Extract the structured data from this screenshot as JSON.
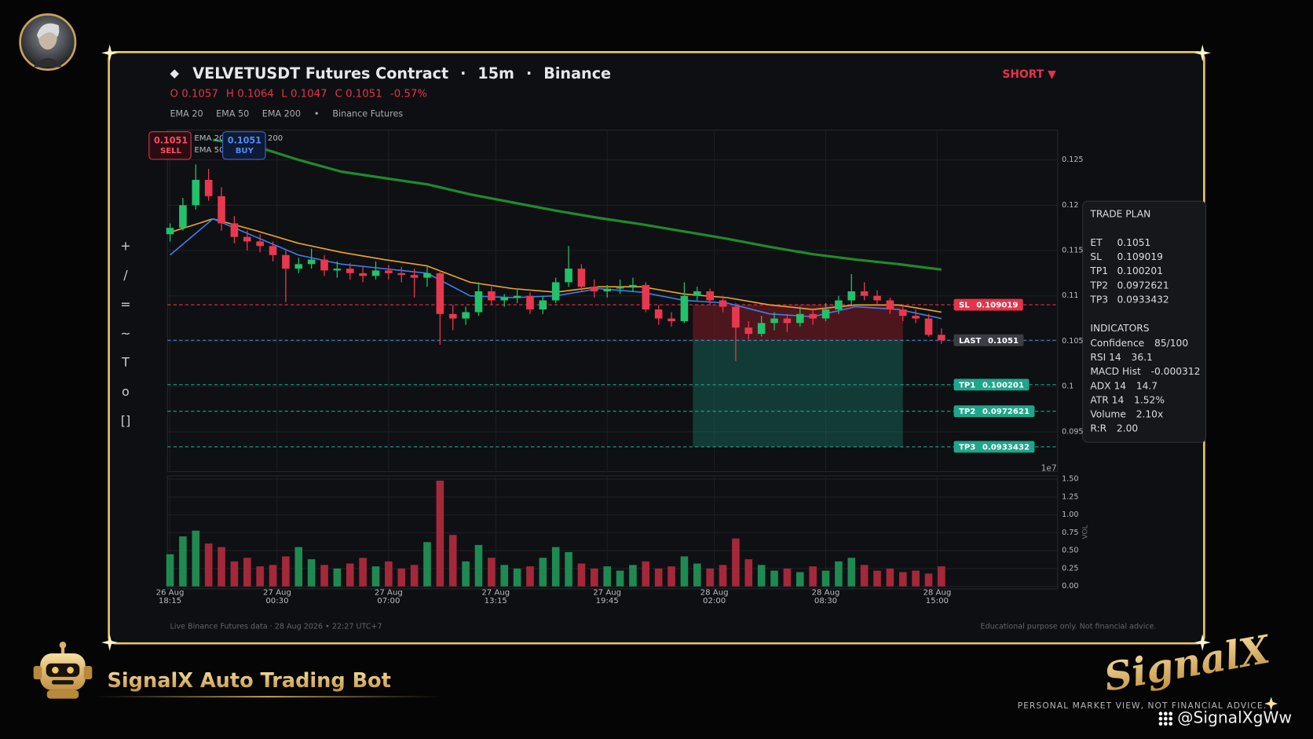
{
  "header": {
    "icon": "◆",
    "title": "VELVETUSDT Futures Contract",
    "separator": "·",
    "interval": "15m",
    "exchange": "Binance",
    "side": "SHORT ▼",
    "ohlc": [
      {
        "label": "O",
        "value": "0.1057"
      },
      {
        "label": "H",
        "value": "0.1064"
      },
      {
        "label": "L",
        "value": "0.1047"
      },
      {
        "label": "C",
        "value": "0.1051"
      }
    ],
    "change": "-0.57%",
    "legend_separator": "•",
    "source": "Binance Futures"
  },
  "order_buttons": [
    {
      "price": "0.1051",
      "label": "SELL"
    },
    {
      "price": "0.1051",
      "label": "BUY"
    }
  ],
  "toolbar": [
    "+",
    "/",
    "=",
    "~",
    "T",
    "o",
    "[]"
  ],
  "trade_plan": {
    "title": "TRADE PLAN",
    "rows": [
      [
        "ET",
        "0.1051"
      ],
      [
        "SL",
        "0.109019"
      ],
      [
        "TP1",
        "0.100201"
      ],
      [
        "TP2",
        "0.0972621"
      ],
      [
        "TP3",
        "0.0933432"
      ]
    ],
    "indicators_title": "INDICATORS",
    "indicators": [
      [
        "Confidence",
        "85/100"
      ],
      [
        "RSI 14",
        "36.1"
      ],
      [
        "MACD Hist",
        "-0.000312"
      ],
      [
        "ADX 14",
        "14.7"
      ],
      [
        "ATR 14",
        "1.52%"
      ],
      [
        "Volume",
        "2.10x"
      ],
      [
        "R:R",
        "2.00"
      ]
    ]
  },
  "footer": {
    "left": "Live Binance Futures data  ·  28 Aug 2026 • 22:27 UTC+7",
    "right": "Educational purpose only. Not financial advice."
  },
  "branding": {
    "bot": "SignalX Auto Trading Bot",
    "logo": "SignalX",
    "disclaimer": "PERSONAL MARKET VIEW, NOT FINANCIAL ADVICE.",
    "watermark": "@SignalXgWw"
  },
  "chart_data": [
    {
      "type": "candlestick",
      "x": [
        0,
        3,
        6,
        9,
        12,
        15,
        18,
        21,
        24,
        27,
        30,
        33,
        36,
        39,
        42,
        45,
        48,
        51,
        54,
        57,
        60,
        63,
        66,
        69,
        72,
        75,
        78,
        81,
        84,
        87,
        90,
        93,
        96,
        99,
        102,
        105,
        108,
        111,
        114,
        117,
        120,
        123,
        126,
        129,
        132,
        135,
        138,
        141,
        144,
        147,
        150,
        153,
        156,
        159,
        162,
        165,
        168,
        171,
        174,
        177,
        180
      ],
      "open": [
        0.1168,
        0.1175,
        0.12,
        0.1228,
        0.121,
        0.118,
        0.1165,
        0.116,
        0.1155,
        0.1145,
        0.113,
        0.1135,
        0.114,
        0.1128,
        0.113,
        0.1125,
        0.1122,
        0.1128,
        0.1125,
        0.1123,
        0.112,
        0.1125,
        0.108,
        0.1075,
        0.1082,
        0.1105,
        0.1095,
        0.1098,
        0.11,
        0.1085,
        0.1095,
        0.1115,
        0.113,
        0.111,
        0.1105,
        0.1108,
        0.111,
        0.1112,
        0.1085,
        0.1075,
        0.1072,
        0.11,
        0.1105,
        0.1095,
        0.1088,
        0.1065,
        0.1058,
        0.107,
        0.1075,
        0.107,
        0.108,
        0.1075,
        0.1085,
        0.1095,
        0.1105,
        0.11,
        0.1095,
        0.1085,
        0.1078,
        0.1075,
        0.1057
      ],
      "high": [
        0.118,
        0.1208,
        0.1245,
        0.124,
        0.122,
        0.1188,
        0.1172,
        0.1168,
        0.116,
        0.115,
        0.1142,
        0.1152,
        0.1145,
        0.1138,
        0.1136,
        0.1132,
        0.1138,
        0.1134,
        0.1132,
        0.113,
        0.1132,
        0.1128,
        0.109,
        0.1088,
        0.1115,
        0.111,
        0.1102,
        0.1108,
        0.1104,
        0.11,
        0.112,
        0.1155,
        0.1135,
        0.1118,
        0.1112,
        0.1118,
        0.112,
        0.1115,
        0.109,
        0.1082,
        0.1115,
        0.111,
        0.1108,
        0.11,
        0.1092,
        0.1072,
        0.1078,
        0.1082,
        0.108,
        0.1088,
        0.1085,
        0.1092,
        0.11,
        0.1124,
        0.1115,
        0.1106,
        0.1098,
        0.109,
        0.1085,
        0.108,
        0.1064
      ],
      "low": [
        0.116,
        0.1172,
        0.1195,
        0.1205,
        0.1172,
        0.1158,
        0.115,
        0.1148,
        0.1138,
        0.1093,
        0.1125,
        0.113,
        0.1122,
        0.112,
        0.1118,
        0.1115,
        0.1118,
        0.1118,
        0.1115,
        0.1098,
        0.111,
        0.1046,
        0.1062,
        0.1068,
        0.1078,
        0.109,
        0.1088,
        0.1092,
        0.108,
        0.108,
        0.1092,
        0.111,
        0.1105,
        0.1098,
        0.1098,
        0.1102,
        0.1105,
        0.1082,
        0.1068,
        0.1066,
        0.107,
        0.1095,
        0.109,
        0.1082,
        0.1028,
        0.1052,
        0.1055,
        0.1062,
        0.106,
        0.1066,
        0.1068,
        0.1072,
        0.108,
        0.109,
        0.1095,
        0.109,
        0.108,
        0.1072,
        0.107,
        0.1055,
        0.1047
      ],
      "close": [
        0.1175,
        0.12,
        0.1228,
        0.121,
        0.118,
        0.1165,
        0.116,
        0.1155,
        0.1145,
        0.113,
        0.1135,
        0.114,
        0.1128,
        0.113,
        0.1125,
        0.1122,
        0.1128,
        0.1125,
        0.1123,
        0.112,
        0.1125,
        0.108,
        0.1075,
        0.1082,
        0.1105,
        0.1095,
        0.1098,
        0.11,
        0.1085,
        0.1095,
        0.1115,
        0.113,
        0.111,
        0.1105,
        0.1108,
        0.111,
        0.1112,
        0.1085,
        0.1075,
        0.1072,
        0.11,
        0.1105,
        0.1095,
        0.1088,
        0.1065,
        0.1058,
        0.107,
        0.1075,
        0.107,
        0.108,
        0.1075,
        0.1085,
        0.1095,
        0.1105,
        0.11,
        0.1095,
        0.1085,
        0.1078,
        0.1075,
        0.1057,
        0.1051
      ],
      "up_color": "#22c16b",
      "down_color": "#e8384f",
      "series": [
        {
          "name": "EMA 20",
          "color": "#3b7ff0",
          "width": 1.5,
          "x": [
            0,
            10,
            20,
            30,
            40,
            50,
            60,
            70,
            80,
            90,
            100,
            110,
            120,
            130,
            140,
            150,
            160,
            170,
            180
          ],
          "values": [
            0.1145,
            0.1185,
            0.1165,
            0.1145,
            0.1135,
            0.113,
            0.1125,
            0.11,
            0.1098,
            0.11,
            0.1108,
            0.1104,
            0.1095,
            0.1092,
            0.108,
            0.1077,
            0.1088,
            0.1085,
            0.1075
          ]
        },
        {
          "name": "EMA 50",
          "color": "#f2a427",
          "width": 1.5,
          "x": [
            0,
            10,
            20,
            30,
            40,
            50,
            60,
            70,
            80,
            90,
            100,
            110,
            120,
            130,
            140,
            150,
            160,
            170,
            180
          ],
          "values": [
            0.117,
            0.1185,
            0.1172,
            0.1158,
            0.1148,
            0.114,
            0.1133,
            0.1115,
            0.1108,
            0.1104,
            0.111,
            0.111,
            0.1102,
            0.1098,
            0.109,
            0.1085,
            0.109,
            0.109,
            0.1082
          ]
        },
        {
          "name": "EMA 200",
          "color": "#1f8a2c",
          "width": 3,
          "x": [
            0,
            10,
            20,
            30,
            40,
            50,
            60,
            70,
            80,
            90,
            100,
            110,
            120,
            130,
            140,
            150,
            160,
            170,
            180
          ],
          "values": [
            null,
            0.1272,
            0.1265,
            0.125,
            0.1237,
            0.123,
            0.1223,
            0.1212,
            0.1203,
            0.1194,
            0.1186,
            0.1179,
            0.1171,
            0.1163,
            0.1154,
            0.1146,
            0.114,
            0.1135,
            0.1129
          ]
        }
      ],
      "levels": [
        {
          "name": "SL",
          "value": 0.109019,
          "color": "#e5334b",
          "fill": "#e5334b"
        },
        {
          "name": "LAST",
          "value": 0.1051,
          "color": "#4a90d9",
          "fill": "#3a3d44"
        },
        {
          "name": "TP1",
          "value": 0.100201,
          "color": "#1fa58a",
          "fill": "#1fa58a"
        },
        {
          "name": "TP2",
          "value": 0.0972621,
          "color": "#1fa58a",
          "fill": "#1fa58a"
        },
        {
          "name": "TP3",
          "value": 0.0933432,
          "color": "#1fa58a",
          "fill": "#1fa58a"
        }
      ],
      "zones": [
        {
          "x": [
            122,
            171
          ],
          "levels": [
            1,
            0
          ],
          "color": "rgba(140,28,40,0.5)"
        },
        {
          "x": [
            122,
            171
          ],
          "levels": [
            4,
            1
          ],
          "color": "rgba(24,120,100,0.42)"
        }
      ],
      "xlim": [
        -0.6,
        207.1
      ],
      "ylim": [
        0.0906,
        0.1283
      ],
      "yticks": [
        0.095,
        0.1,
        0.105,
        0.11,
        0.115,
        0.12,
        0.125
      ],
      "y_offset_label": "1e7",
      "grid": true
    },
    {
      "type": "bar",
      "x": [
        0,
        3,
        6,
        9,
        12,
        15,
        18,
        21,
        24,
        27,
        30,
        33,
        36,
        39,
        42,
        45,
        48,
        51,
        54,
        57,
        60,
        63,
        66,
        69,
        72,
        75,
        78,
        81,
        84,
        87,
        90,
        93,
        96,
        99,
        102,
        105,
        108,
        111,
        114,
        117,
        120,
        123,
        126,
        129,
        132,
        135,
        138,
        141,
        144,
        147,
        150,
        153,
        156,
        159,
        162,
        165,
        168,
        171,
        174,
        177,
        180
      ],
      "values": [
        0.45,
        0.7,
        0.78,
        0.6,
        0.55,
        0.35,
        0.4,
        0.28,
        0.3,
        0.42,
        0.55,
        0.38,
        0.3,
        0.25,
        0.32,
        0.4,
        0.28,
        0.35,
        0.25,
        0.3,
        0.62,
        1.48,
        0.72,
        0.35,
        0.58,
        0.4,
        0.3,
        0.25,
        0.28,
        0.4,
        0.55,
        0.48,
        0.32,
        0.25,
        0.28,
        0.22,
        0.3,
        0.35,
        0.25,
        0.28,
        0.42,
        0.32,
        0.25,
        0.3,
        0.67,
        0.38,
        0.3,
        0.22,
        0.25,
        0.2,
        0.28,
        0.22,
        0.35,
        0.4,
        0.3,
        0.22,
        0.25,
        0.2,
        0.22,
        0.18,
        0.28
      ],
      "up_color": "#1e8a52",
      "down_color": "#a5283a",
      "y_label": "VOL",
      "xlim": [
        -0.6,
        207.1
      ],
      "xticks": [
        {
          "value": 0,
          "label": "26 Aug 18:15"
        },
        {
          "value": 25,
          "label": "27 Aug 00:30"
        },
        {
          "value": 51,
          "label": "27 Aug 07:00"
        },
        {
          "value": 76,
          "label": "27 Aug 13:15"
        },
        {
          "value": 102,
          "label": "27 Aug 19:45"
        },
        {
          "value": 127,
          "label": "28 Aug 02:00"
        },
        {
          "value": 153,
          "label": "28 Aug 08:30"
        },
        {
          "value": 179,
          "label": "28 Aug 15:00"
        }
      ],
      "ylim": [
        0,
        1.5
      ],
      "yticks": [
        {
          "value": 0,
          "label": "0.00"
        },
        {
          "value": 0.25,
          "label": "0.25"
        },
        {
          "value": 0.5,
          "label": "0.50"
        },
        {
          "value": 0.75,
          "label": "0.75"
        },
        {
          "value": 1,
          "label": "1.00"
        },
        {
          "value": 1.25,
          "label": "1.25"
        },
        {
          "value": 1.5,
          "label": "1.50"
        }
      ],
      "grid": true
    }
  ]
}
